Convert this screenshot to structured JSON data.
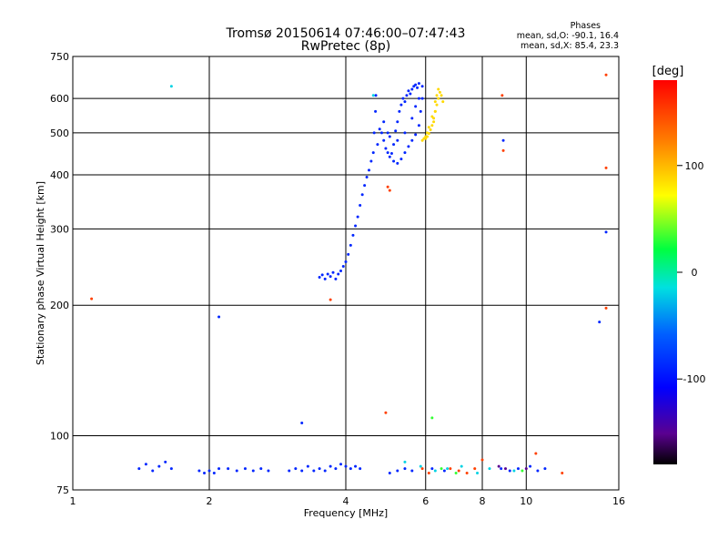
{
  "chart_data": {
    "type": "scatter",
    "title": "Tromsø 20150614 07:46:00–07:47:43",
    "subtitle": "RwPretec (8p)",
    "xlabel": "Frequency [MHz]",
    "ylabel": "Stationary phase Virtual Height [km]",
    "x_scale": "log2",
    "y_scale": "log",
    "xlim": [
      1,
      16
    ],
    "ylim": [
      75,
      750
    ],
    "x_ticks": [
      1,
      2,
      4,
      6,
      8,
      10,
      16
    ],
    "x_tick_labels": [
      "1",
      "2",
      "4",
      "6",
      "8",
      "10",
      "16"
    ],
    "y_ticks": [
      75,
      100,
      200,
      300,
      400,
      500,
      600,
      750
    ],
    "y_tick_labels": [
      "75",
      "100",
      "200",
      "300",
      "400",
      "500",
      "600",
      "750"
    ],
    "grid": true,
    "phases_box": {
      "heading": "Phases",
      "line_o": "mean, sd,O: -90.1, 16.4",
      "line_x": "mean, sd,X:  85.4, 23.3"
    },
    "colorbar": {
      "label": "[deg]",
      "range": [
        -180,
        180
      ],
      "ticks": [
        100,
        0,
        -100
      ],
      "tick_labels": [
        "100",
        "0",
        "-100"
      ]
    },
    "series": [
      {
        "mode": "O",
        "phase_deg": -90,
        "points": [
          [
            3.5,
            232
          ],
          [
            3.55,
            235
          ],
          [
            3.6,
            230
          ],
          [
            3.65,
            236
          ],
          [
            3.7,
            233
          ],
          [
            3.75,
            238
          ],
          [
            3.8,
            230
          ],
          [
            3.85,
            236
          ],
          [
            3.9,
            240
          ],
          [
            3.95,
            246
          ],
          [
            4.0,
            252
          ],
          [
            4.05,
            262
          ],
          [
            4.1,
            275
          ],
          [
            4.15,
            290
          ],
          [
            4.2,
            305
          ],
          [
            4.25,
            320
          ],
          [
            4.3,
            340
          ],
          [
            4.35,
            360
          ],
          [
            4.4,
            378
          ],
          [
            4.45,
            395
          ],
          [
            4.5,
            410
          ],
          [
            4.55,
            430
          ],
          [
            4.6,
            450
          ],
          [
            4.62,
            500
          ],
          [
            4.65,
            560
          ],
          [
            4.66,
            610
          ],
          [
            4.7,
            470
          ],
          [
            4.75,
            510
          ],
          [
            4.8,
            500
          ],
          [
            4.85,
            480
          ],
          [
            4.9,
            460
          ],
          [
            4.95,
            450
          ],
          [
            5.0,
            440
          ],
          [
            5.05,
            448
          ],
          [
            5.1,
            470
          ],
          [
            5.15,
            505
          ],
          [
            5.2,
            530
          ],
          [
            5.25,
            560
          ],
          [
            5.3,
            580
          ],
          [
            5.35,
            600
          ],
          [
            5.4,
            590
          ],
          [
            5.45,
            610
          ],
          [
            5.5,
            625
          ],
          [
            5.55,
            615
          ],
          [
            5.6,
            630
          ],
          [
            5.65,
            640
          ],
          [
            5.7,
            645
          ],
          [
            5.75,
            635
          ],
          [
            5.8,
            650
          ],
          [
            5.1,
            430
          ],
          [
            5.2,
            425
          ],
          [
            5.3,
            435
          ],
          [
            5.4,
            450
          ],
          [
            5.5,
            465
          ],
          [
            5.6,
            480
          ],
          [
            5.7,
            495
          ],
          [
            5.8,
            520
          ],
          [
            5.85,
            560
          ],
          [
            5.9,
            600
          ],
          [
            5.9,
            640
          ],
          [
            5.0,
            490
          ],
          [
            5.2,
            480
          ],
          [
            5.4,
            500
          ],
          [
            5.6,
            540
          ],
          [
            5.7,
            575
          ],
          [
            5.8,
            600
          ],
          [
            4.85,
            530
          ],
          [
            4.95,
            500
          ],
          [
            1.4,
            84
          ],
          [
            1.45,
            86
          ],
          [
            1.5,
            83
          ],
          [
            1.55,
            85
          ],
          [
            1.6,
            87
          ],
          [
            1.65,
            84
          ],
          [
            1.9,
            83
          ],
          [
            1.95,
            82
          ],
          [
            2.0,
            83
          ],
          [
            2.05,
            82
          ],
          [
            2.1,
            84
          ],
          [
            2.2,
            84
          ],
          [
            2.3,
            83
          ],
          [
            2.4,
            84
          ],
          [
            2.5,
            83
          ],
          [
            2.6,
            84
          ],
          [
            2.7,
            83
          ],
          [
            3.0,
            83
          ],
          [
            3.1,
            84
          ],
          [
            3.2,
            83
          ],
          [
            3.3,
            85
          ],
          [
            3.4,
            83
          ],
          [
            3.5,
            84
          ],
          [
            3.6,
            83
          ],
          [
            3.7,
            85
          ],
          [
            3.8,
            84
          ],
          [
            3.9,
            86
          ],
          [
            4.0,
            85
          ],
          [
            4.1,
            84
          ],
          [
            4.2,
            85
          ],
          [
            4.3,
            84
          ],
          [
            5.0,
            82
          ],
          [
            5.2,
            83
          ],
          [
            5.4,
            84
          ],
          [
            5.6,
            83
          ],
          [
            6.2,
            84
          ],
          [
            6.6,
            83
          ],
          [
            8.8,
            84
          ],
          [
            9.2,
            83
          ],
          [
            9.6,
            84
          ],
          [
            10.2,
            85
          ],
          [
            10.6,
            83
          ],
          [
            11.0,
            84
          ],
          [
            3.2,
            107
          ],
          [
            2.1,
            188
          ],
          [
            14.5,
            183
          ],
          [
            15.0,
            295
          ],
          [
            8.9,
            480
          ]
        ]
      },
      {
        "mode": "X",
        "phase_deg": 85,
        "points": [
          [
            5.9,
            480
          ],
          [
            6.0,
            485
          ],
          [
            6.05,
            490
          ],
          [
            6.1,
            498
          ],
          [
            6.15,
            508
          ],
          [
            6.2,
            520
          ],
          [
            6.25,
            540
          ],
          [
            6.3,
            560
          ],
          [
            6.35,
            580
          ],
          [
            6.4,
            600
          ],
          [
            6.45,
            620
          ],
          [
            6.4,
            630
          ],
          [
            6.35,
            610
          ],
          [
            6.3,
            590
          ],
          [
            6.5,
            610
          ],
          [
            6.55,
            590
          ],
          [
            6.3,
            560
          ],
          [
            6.2,
            545
          ],
          [
            6.1,
            515
          ],
          [
            6.05,
            500
          ],
          [
            6.0,
            490
          ],
          [
            5.95,
            485
          ],
          [
            6.25,
            530
          ]
        ]
      },
      {
        "mode": "other",
        "phase_deg": 150,
        "points": [
          [
            1.1,
            207
          ],
          [
            3.7,
            206
          ],
          [
            4.9,
            113
          ],
          [
            4.95,
            375
          ],
          [
            5.0,
            368
          ],
          [
            8.9,
            455
          ],
          [
            8.85,
            610
          ],
          [
            15.0,
            680
          ],
          [
            15.0,
            415
          ],
          [
            15.0,
            197
          ],
          [
            6.8,
            84
          ],
          [
            7.1,
            83
          ],
          [
            7.4,
            82
          ],
          [
            7.7,
            84
          ],
          [
            8.0,
            88
          ],
          [
            10.5,
            91
          ],
          [
            12.0,
            82
          ],
          [
            5.9,
            84
          ],
          [
            6.1,
            82
          ]
        ]
      },
      {
        "mode": "other",
        "phase_deg": -20,
        "points": [
          [
            1.65,
            640
          ],
          [
            5.85,
            85
          ],
          [
            6.3,
            83
          ],
          [
            6.7,
            84
          ],
          [
            7.2,
            85
          ],
          [
            7.8,
            82
          ],
          [
            8.3,
            84
          ],
          [
            9.4,
            83
          ],
          [
            5.4,
            87
          ],
          [
            4.6,
            610
          ]
        ]
      },
      {
        "mode": "other",
        "phase_deg": 30,
        "points": [
          [
            6.2,
            110
          ],
          [
            6.5,
            84
          ],
          [
            7.0,
            82
          ],
          [
            9.8,
            83
          ]
        ]
      },
      {
        "mode": "other",
        "phase_deg": -150,
        "points": [
          [
            8.7,
            85
          ],
          [
            9.0,
            84
          ],
          [
            10.0,
            84
          ]
        ]
      }
    ]
  }
}
